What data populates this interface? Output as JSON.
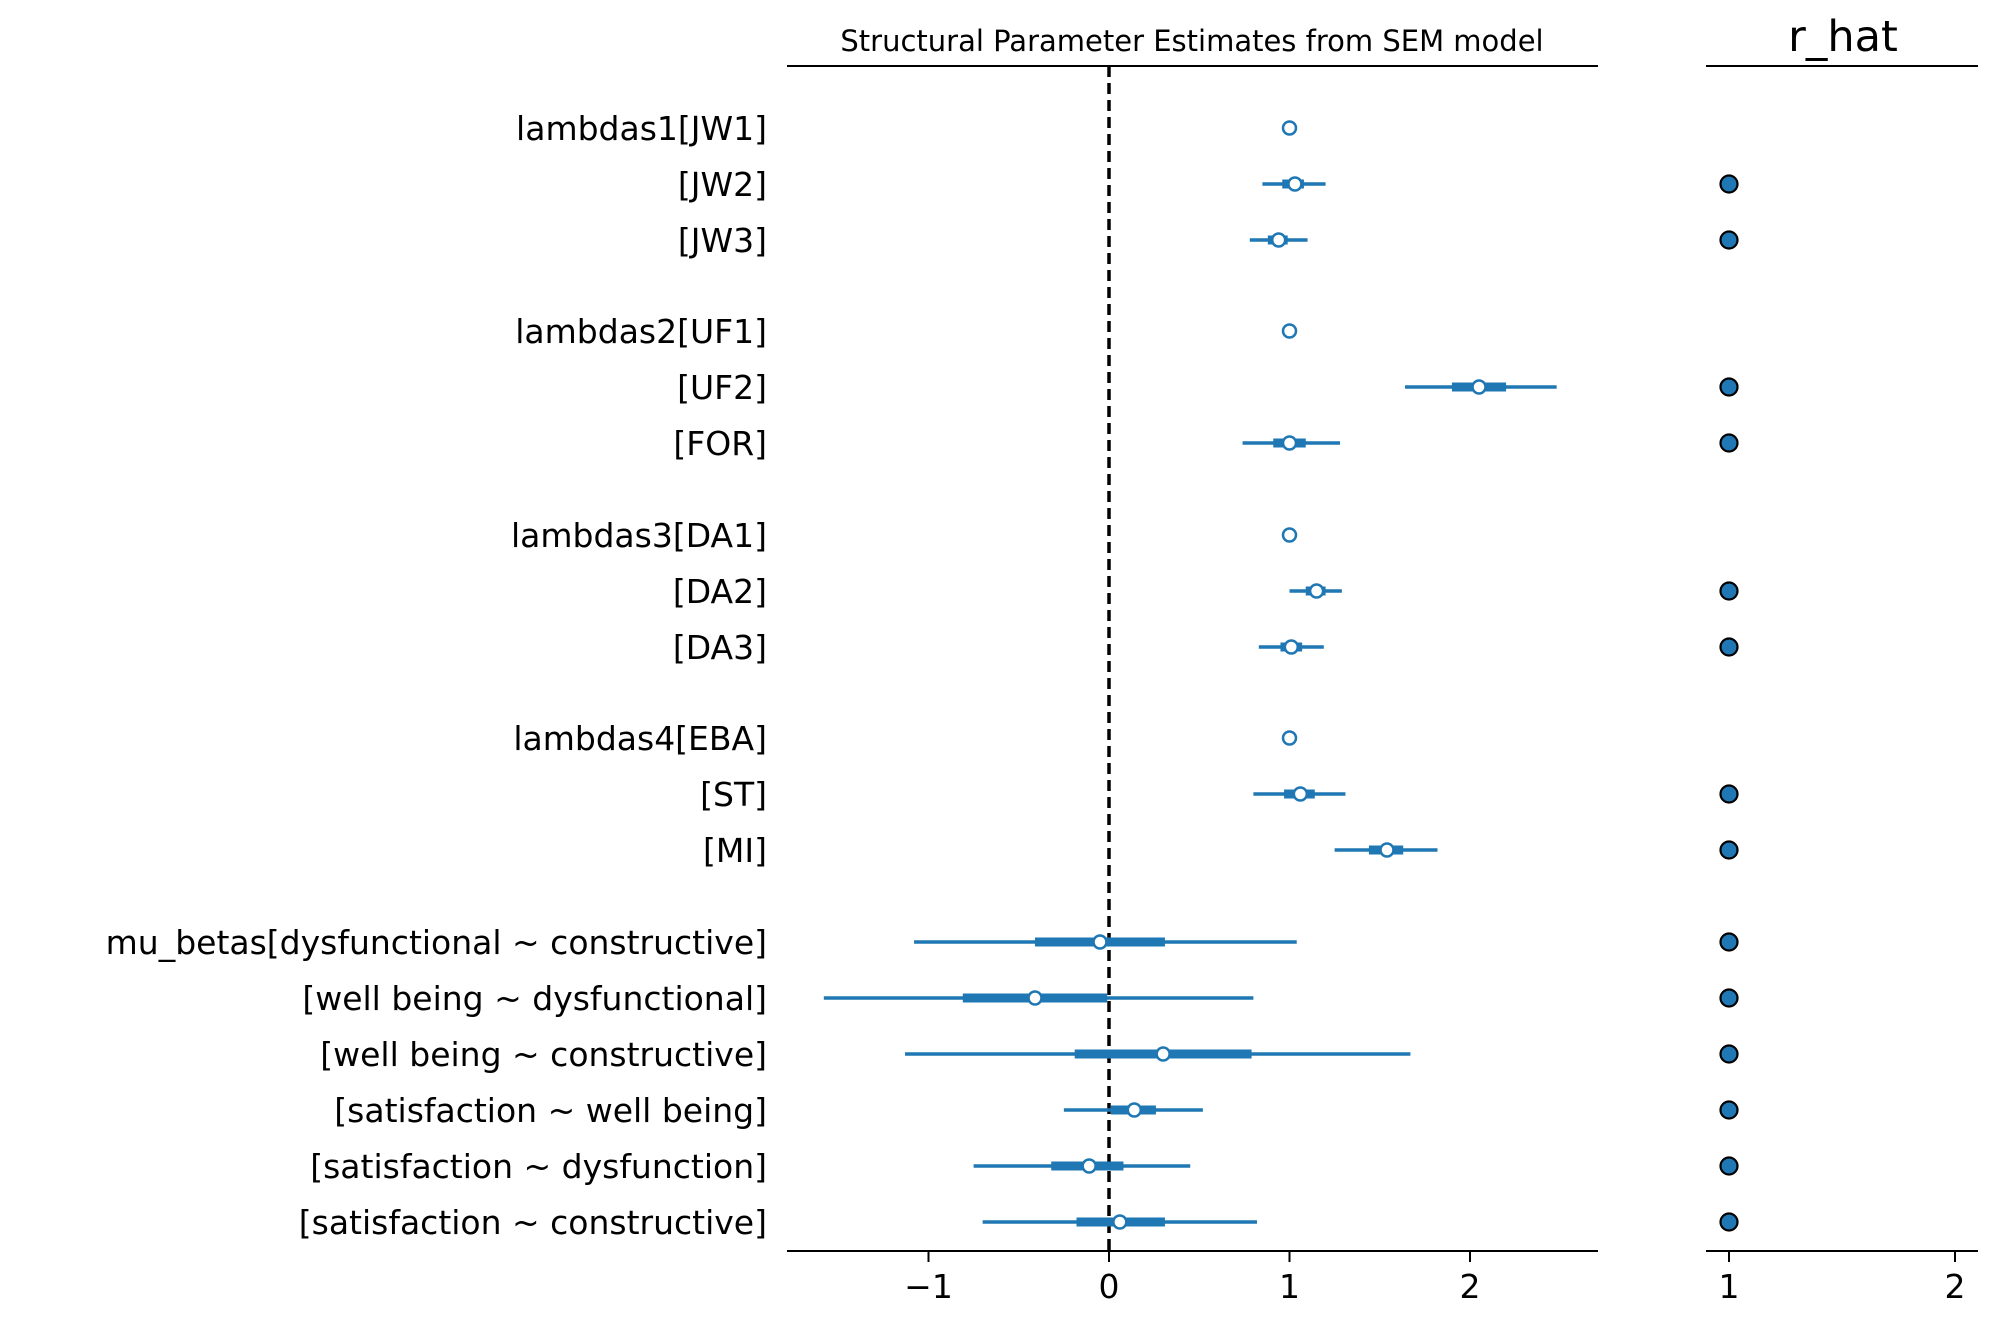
{
  "chart_data": [
    {
      "type": "forest",
      "title": "Structural Parameter Estimates from SEM model",
      "xlim": [
        -1.8,
        2.7
      ],
      "xticks": [
        -1,
        0,
        1,
        2
      ],
      "xtick_labels": [
        "−1",
        "0",
        "1",
        "2"
      ],
      "reference_line": 0,
      "color": "#1f77b4",
      "rows": [
        {
          "label": "lambdas1[JW1]",
          "mean": 1.0,
          "hdi": [
            1.0,
            1.0
          ],
          "iqr": [
            1.0,
            1.0
          ],
          "r_hat": null
        },
        {
          "label": "[JW2]",
          "mean": 1.03,
          "hdi": [
            0.85,
            1.2
          ],
          "iqr": [
            0.96,
            1.08
          ],
          "r_hat": 1.0
        },
        {
          "label": "[JW3]",
          "mean": 0.94,
          "hdi": [
            0.78,
            1.1
          ],
          "iqr": [
            0.88,
            0.99
          ],
          "r_hat": 1.0
        },
        {
          "label": "lambdas2[UF1]",
          "mean": 1.0,
          "hdi": [
            1.0,
            1.0
          ],
          "iqr": [
            1.0,
            1.0
          ],
          "r_hat": null
        },
        {
          "label": "[UF2]",
          "mean": 2.05,
          "hdi": [
            1.64,
            2.48
          ],
          "iqr": [
            1.9,
            2.2
          ],
          "r_hat": 1.0
        },
        {
          "label": "[FOR]",
          "mean": 1.0,
          "hdi": [
            0.74,
            1.28
          ],
          "iqr": [
            0.91,
            1.09
          ],
          "r_hat": 1.0
        },
        {
          "label": "lambdas3[DA1]",
          "mean": 1.0,
          "hdi": [
            1.0,
            1.0
          ],
          "iqr": [
            1.0,
            1.0
          ],
          "r_hat": null
        },
        {
          "label": "[DA2]",
          "mean": 1.15,
          "hdi": [
            1.0,
            1.29
          ],
          "iqr": [
            1.09,
            1.2
          ],
          "r_hat": 1.0
        },
        {
          "label": "[DA3]",
          "mean": 1.01,
          "hdi": [
            0.83,
            1.19
          ],
          "iqr": [
            0.95,
            1.07
          ],
          "r_hat": 1.0
        },
        {
          "label": "lambdas4[EBA]",
          "mean": 1.0,
          "hdi": [
            1.0,
            1.0
          ],
          "iqr": [
            1.0,
            1.0
          ],
          "r_hat": null
        },
        {
          "label": "[ST]",
          "mean": 1.06,
          "hdi": [
            0.8,
            1.31
          ],
          "iqr": [
            0.97,
            1.14
          ],
          "r_hat": 1.0
        },
        {
          "label": "[MI]",
          "mean": 1.54,
          "hdi": [
            1.25,
            1.82
          ],
          "iqr": [
            1.44,
            1.63
          ],
          "r_hat": 1.0
        },
        {
          "label": "mu_betas[dysfunctional ~ constructive]",
          "mean": -0.05,
          "hdi": [
            -1.08,
            1.04
          ],
          "iqr": [
            -0.41,
            0.31
          ],
          "r_hat": 1.0
        },
        {
          "label": "[well being ~ dysfunctional]",
          "mean": -0.41,
          "hdi": [
            -1.58,
            0.8
          ],
          "iqr": [
            -0.81,
            -0.01
          ],
          "r_hat": 1.0
        },
        {
          "label": "[well being ~ constructive]",
          "mean": 0.3,
          "hdi": [
            -1.13,
            1.67
          ],
          "iqr": [
            -0.19,
            0.79
          ],
          "r_hat": 1.0
        },
        {
          "label": "[satisfaction ~ well being]",
          "mean": 0.14,
          "hdi": [
            -0.25,
            0.52
          ],
          "iqr": [
            0.01,
            0.26
          ],
          "r_hat": 1.0
        },
        {
          "label": "[satisfaction ~ dysfunction]",
          "mean": -0.11,
          "hdi": [
            -0.75,
            0.45
          ],
          "iqr": [
            -0.32,
            0.08
          ],
          "r_hat": 1.0
        },
        {
          "label": "[satisfaction ~ constructive]",
          "mean": 0.06,
          "hdi": [
            -0.7,
            0.82
          ],
          "iqr": [
            -0.18,
            0.31
          ],
          "r_hat": 1.0
        }
      ]
    },
    {
      "type": "scatter",
      "title": "r_hat",
      "xlim": [
        0.9,
        2.1
      ],
      "xticks": [
        1,
        2
      ],
      "xtick_labels": [
        "1",
        "2"
      ]
    }
  ]
}
